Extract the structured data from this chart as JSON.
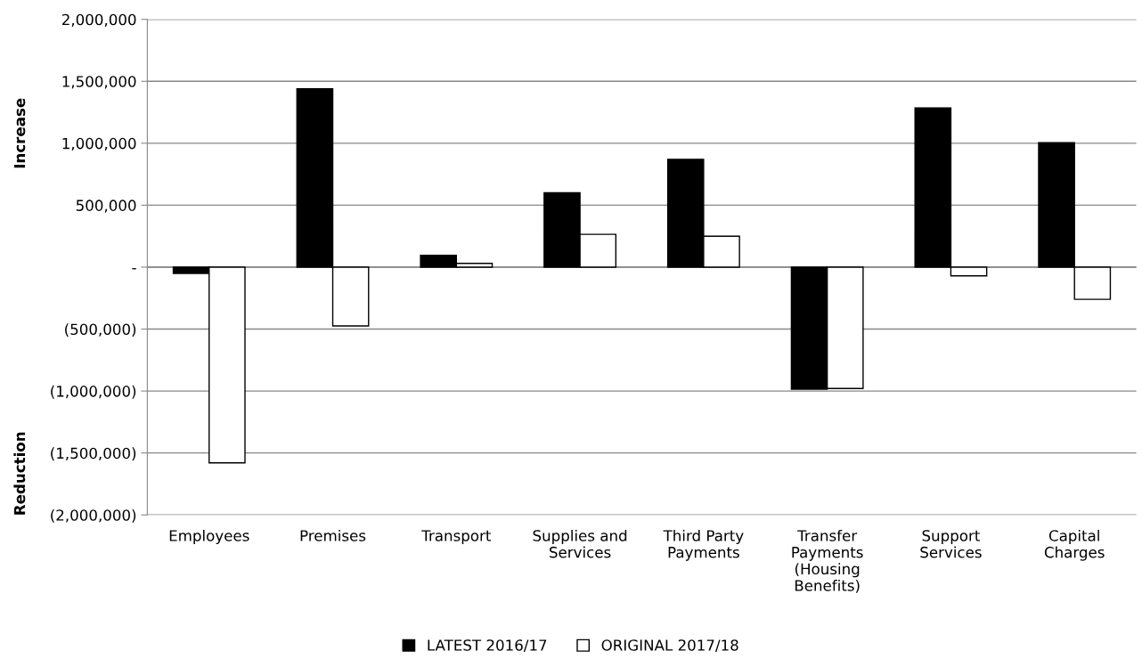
{
  "chart_data": {
    "type": "bar",
    "categories": [
      "Employees",
      "Premises",
      "Transport",
      "Supplies and Services",
      "Third Party Payments",
      "Transfer Payments (Housing Benefits)",
      "Support Services",
      "Capital Charges"
    ],
    "series": [
      {
        "name": "LATEST 2016/17",
        "color": "#000000",
        "values": [
          -50000,
          1440000,
          95000,
          600000,
          870000,
          -985000,
          1285000,
          1005000
        ]
      },
      {
        "name": "ORIGINAL 2017/18",
        "color": "#ffffff",
        "values": [
          -1580000,
          -475000,
          30000,
          265000,
          250000,
          -980000,
          -70000,
          -260000
        ]
      }
    ],
    "ylabel": "Increase",
    "annotations": [
      "Reduction"
    ],
    "ylim": [
      -2000000,
      2000000
    ],
    "yticks": [
      {
        "value": -2000000,
        "label": "(2,000,000)"
      },
      {
        "value": -1500000,
        "label": "(1,500,000)"
      },
      {
        "value": -1000000,
        "label": "(1,000,000)"
      },
      {
        "value": -500000,
        "label": "(500,000)"
      },
      {
        "value": 0,
        "label": "-"
      },
      {
        "value": 500000,
        "label": "500,000"
      },
      {
        "value": 1000000,
        "label": "1,000,000"
      },
      {
        "value": 1500000,
        "label": "1,500,000"
      },
      {
        "value": 2000000,
        "label": "2,000,000"
      }
    ],
    "grid": "y",
    "legend": "bottom"
  }
}
